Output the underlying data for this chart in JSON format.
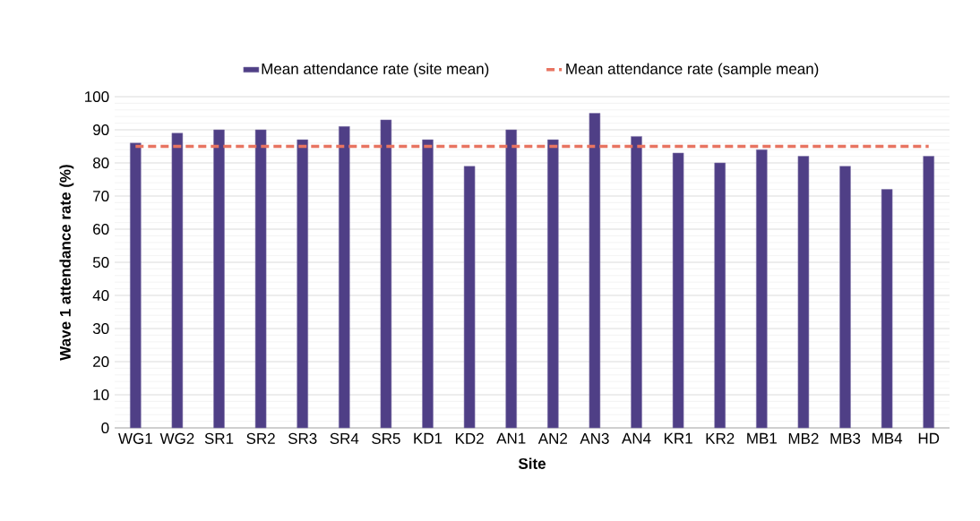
{
  "chart_data": {
    "type": "bar",
    "xlabel": "Site",
    "ylabel": "Wave 1 attendance rate (%)",
    "categories": [
      "WG1",
      "WG2",
      "SR1",
      "SR2",
      "SR3",
      "SR4",
      "SR5",
      "KD1",
      "KD2",
      "AN1",
      "AN2",
      "AN3",
      "AN4",
      "KR1",
      "KR2",
      "MB1",
      "MB2",
      "MB3",
      "MB4",
      "HD"
    ],
    "series": [
      {
        "name": "Mean attendance rate (site mean)",
        "color": "#4f3f86",
        "values": [
          86,
          89,
          90,
          90,
          87,
          91,
          93,
          87,
          79,
          90,
          87,
          95,
          88,
          83,
          80,
          84,
          82,
          79,
          72,
          82
        ]
      },
      {
        "name": "Mean attendance rate (sample mean)",
        "type": "line",
        "line_style": "dashed",
        "color": "#e87461",
        "values": [
          85,
          85,
          85,
          85,
          85,
          85,
          85,
          85,
          85,
          85,
          85,
          85,
          85,
          85,
          85,
          85,
          85,
          85,
          85,
          85
        ]
      }
    ],
    "ylim": [
      0,
      100
    ],
    "yticks": [
      0,
      10,
      20,
      30,
      40,
      50,
      60,
      70,
      80,
      90,
      100
    ],
    "grid": "y",
    "legend": "top",
    "marker": "none"
  }
}
